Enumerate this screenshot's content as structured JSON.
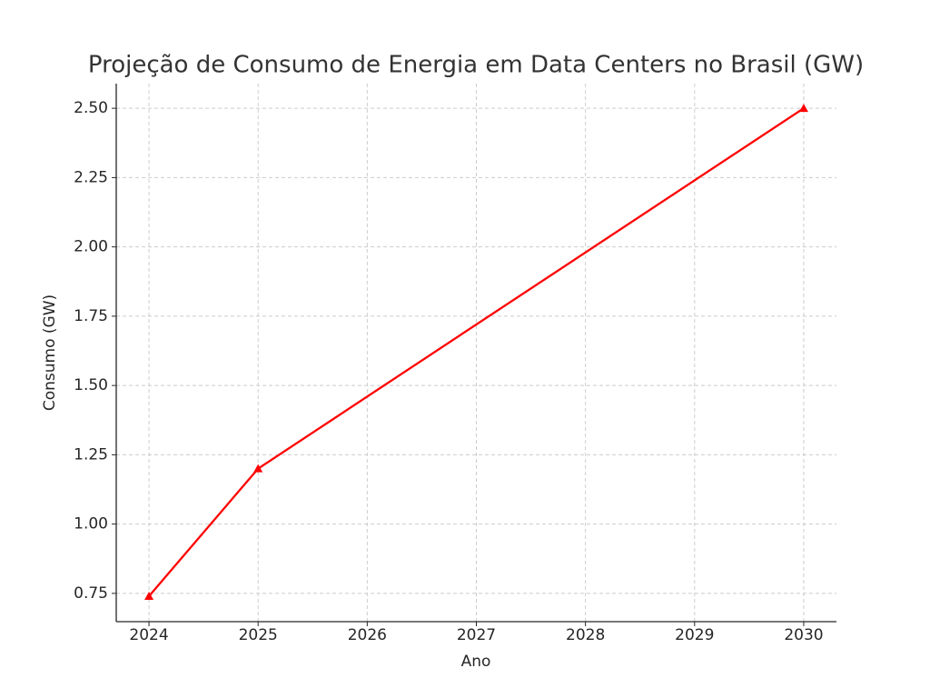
{
  "chart_data": {
    "type": "line",
    "title": "Projeção de Consumo de Energia em Data Centers no Brasil (GW)",
    "x_label": "Ano",
    "y_label": "Consumo (GW)",
    "x": [
      2024,
      2025,
      2030
    ],
    "series": [
      {
        "name": "Consumo",
        "color": "#ff0000",
        "values": [
          0.74,
          1.2,
          2.5
        ],
        "marker": "triangle"
      }
    ],
    "xlim": [
      2023.7,
      2030.3
    ],
    "xticks": [
      2024,
      2025,
      2026,
      2027,
      2028,
      2029,
      2030
    ],
    "ylim": [
      0.648,
      2.589
    ],
    "yticks": [
      0.75,
      {
        "value": 1,
        "label": "1.00"
      },
      1.25,
      {
        "value": 1.5,
        "label": "1.50"
      },
      1.75,
      {
        "value": 2,
        "label": "2.00"
      },
      2.25,
      {
        "value": 2.5,
        "label": "2.50"
      }
    ],
    "grid": true
  }
}
